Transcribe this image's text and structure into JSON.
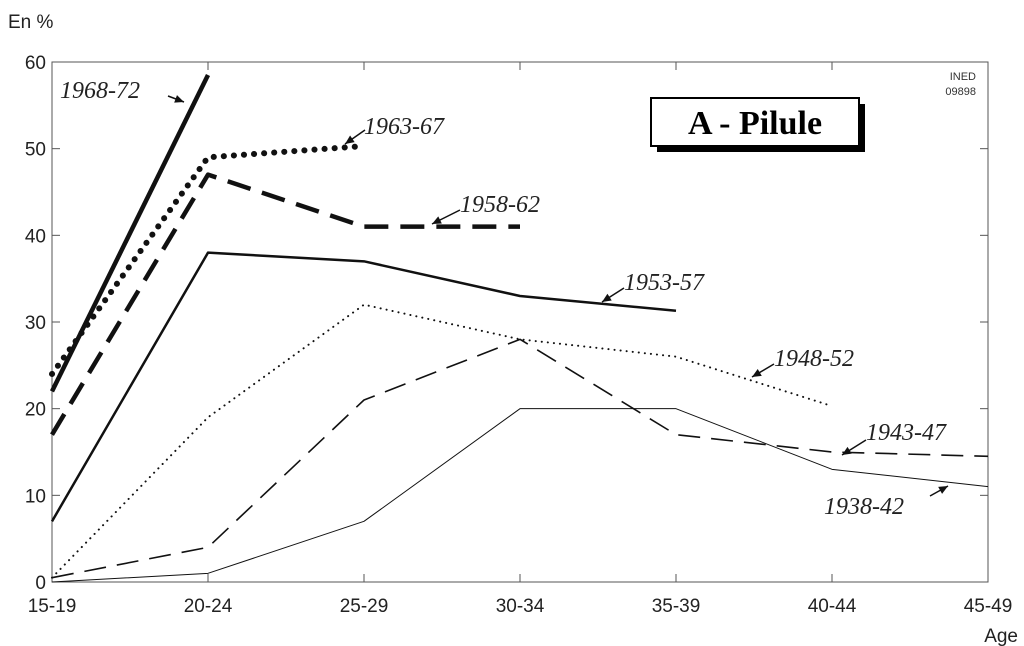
{
  "chart_data": {
    "type": "line",
    "title": "A - Pilule",
    "ylabel": "En %",
    "xlabel": "Age",
    "categories": [
      "15-19",
      "20-24",
      "25-29",
      "30-34",
      "35-39",
      "40-44",
      "45-49"
    ],
    "ylim": [
      0,
      60
    ],
    "yticks": [
      0,
      10,
      20,
      30,
      40,
      50,
      60
    ],
    "grid": false,
    "credit": [
      "INED",
      "09898"
    ],
    "series": [
      {
        "name": "1968-72",
        "values": [
          22,
          58.5,
          null,
          null,
          null,
          null,
          null
        ]
      },
      {
        "name": "1963-67",
        "values": [
          24,
          49,
          50.3,
          null,
          null,
          null,
          null
        ]
      },
      {
        "name": "1958-62",
        "values": [
          17,
          47,
          41,
          41,
          null,
          null,
          null
        ]
      },
      {
        "name": "1953-57",
        "values": [
          7,
          38,
          37,
          33,
          31.3,
          null,
          null
        ]
      },
      {
        "name": "1948-52",
        "values": [
          0.5,
          19,
          32,
          28,
          26,
          20.3,
          null
        ]
      },
      {
        "name": "1943-47",
        "values": [
          0.5,
          4,
          21,
          28,
          17,
          15,
          14.5
        ]
      },
      {
        "name": "1938-42",
        "values": [
          0,
          1,
          7,
          20,
          20,
          13,
          11
        ]
      }
    ]
  }
}
